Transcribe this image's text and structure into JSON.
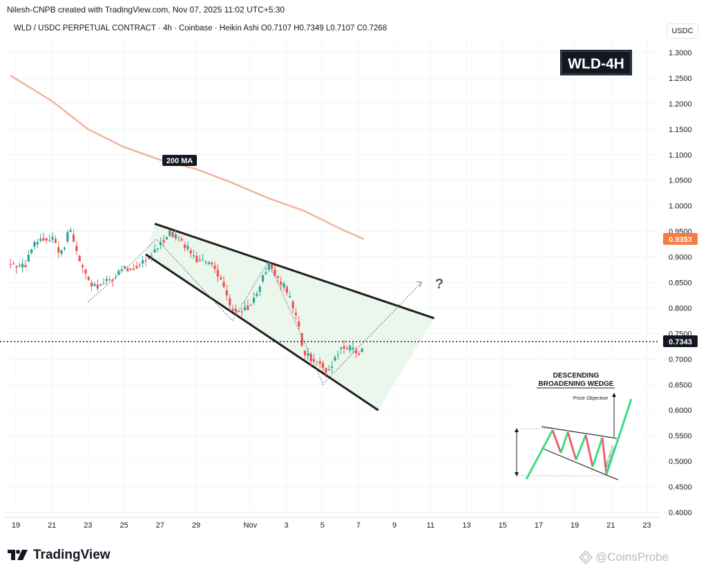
{
  "header": {
    "credit": "Nilesh-CNPB created with TradingView.com, Nov 07, 2025 11:02 UTC+5:30",
    "legend": "WLD / USDC PERPETUAL CONTRACT · 4h · Coinbase · Heikin Ashi  O0.7107  H0.7349  L0.7107  C0.7268",
    "unit_button": "USDC"
  },
  "badge": {
    "label": "WLD-4H"
  },
  "annotations": {
    "ma_label": "200 MA",
    "question_mark": "?",
    "current_price": "0.7343",
    "ma_price": "0.9353"
  },
  "inset": {
    "title_line1": "DESCENDING",
    "title_line2": "BROADENING WEDGE",
    "price_objective": "Price Objective",
    "breakout": "BREAKOUT"
  },
  "footer": {
    "logo_text": "TradingView",
    "watermark": "CoinsProbe",
    "logo_icon": "tradingview-logo-icon",
    "watermark_icon": "coinsprobe-icon"
  },
  "colors": {
    "up": "#26a69a",
    "down": "#ef5350",
    "ma": "#f2b49a",
    "wedge_fill": "#e8f5e9",
    "wedge_line": "#1e1e1e",
    "price_tag": "#131722",
    "ma_tag": "#f57c3e",
    "badge_bg": "#131722"
  },
  "chart_data": {
    "type": "candlestick",
    "style": "Heikin Ashi",
    "symbol": "WLD / USDC PERPETUAL CONTRACT",
    "interval": "4h",
    "exchange": "Coinbase",
    "ohlc_last": {
      "open": 0.7107,
      "high": 0.7349,
      "low": 0.7107,
      "close": 0.7268
    },
    "ylim": [
      0.4,
      1.3
    ],
    "y_ticks": [
      1.3,
      1.25,
      1.2,
      1.15,
      1.1,
      1.05,
      1.0,
      0.95,
      0.9,
      0.85,
      0.8,
      0.75,
      0.7,
      0.65,
      0.6,
      0.55,
      0.5,
      0.45,
      0.4
    ],
    "y_tick_labels": [
      "1.3000",
      "1.2500",
      "1.2000",
      "1.1500",
      "1.1000",
      "1.0500",
      "1.0000",
      "0.9500",
      "0.9000",
      "0.8500",
      "0.8000",
      "0.7500",
      "0.7000",
      "0.6500",
      "0.6000",
      "0.5500",
      "0.5000",
      "0.4500",
      "0.4000"
    ],
    "x_ticks": [
      {
        "day": 0,
        "label": "19"
      },
      {
        "day": 2,
        "label": "21"
      },
      {
        "day": 4,
        "label": "23"
      },
      {
        "day": 6,
        "label": "25"
      },
      {
        "day": 8,
        "label": "27"
      },
      {
        "day": 10,
        "label": "29"
      },
      {
        "day": 13,
        "label": "Nov"
      },
      {
        "day": 15,
        "label": "3"
      },
      {
        "day": 17,
        "label": "5"
      },
      {
        "day": 19,
        "label": "7"
      },
      {
        "day": 21,
        "label": "9"
      },
      {
        "day": 23,
        "label": "11"
      },
      {
        "day": 25,
        "label": "13"
      },
      {
        "day": 27,
        "label": "15"
      },
      {
        "day": 29,
        "label": "17"
      },
      {
        "day": 31,
        "label": "19"
      },
      {
        "day": 33,
        "label": "21"
      },
      {
        "day": 35,
        "label": "23"
      }
    ],
    "current_price": 0.7343,
    "ma200_last": 0.9353,
    "ma200": [
      {
        "day": -0.3,
        "y": 1.255
      },
      {
        "day": 2,
        "y": 1.205
      },
      {
        "day": 4,
        "y": 1.15
      },
      {
        "day": 6,
        "y": 1.115
      },
      {
        "day": 8,
        "y": 1.09
      },
      {
        "day": 10,
        "y": 1.072
      },
      {
        "day": 12,
        "y": 1.045
      },
      {
        "day": 14,
        "y": 1.015
      },
      {
        "day": 16,
        "y": 0.99
      },
      {
        "day": 18,
        "y": 0.955
      },
      {
        "day": 19.3,
        "y": 0.935
      }
    ],
    "candle_path": [
      [
        -0.3,
        0.885
      ],
      [
        0.5,
        0.88
      ],
      [
        1.0,
        0.925
      ],
      [
        2.0,
        0.94
      ],
      [
        2.5,
        0.905
      ],
      [
        3.0,
        0.955
      ],
      [
        3.5,
        0.895
      ],
      [
        4.2,
        0.84
      ],
      [
        5.0,
        0.85
      ],
      [
        6.0,
        0.875
      ],
      [
        6.5,
        0.88
      ],
      [
        7.5,
        0.9
      ],
      [
        8.0,
        0.925
      ],
      [
        8.5,
        0.95
      ],
      [
        9.0,
        0.935
      ],
      [
        9.5,
        0.92
      ],
      [
        10.0,
        0.895
      ],
      [
        11.0,
        0.885
      ],
      [
        12.0,
        0.8
      ],
      [
        12.5,
        0.79
      ],
      [
        13.0,
        0.805
      ],
      [
        13.5,
        0.84
      ],
      [
        14.0,
        0.885
      ],
      [
        14.5,
        0.86
      ],
      [
        15.0,
        0.835
      ],
      [
        15.5,
        0.79
      ],
      [
        16.0,
        0.71
      ],
      [
        17.0,
        0.69
      ],
      [
        17.3,
        0.67
      ],
      [
        18.0,
        0.725
      ],
      [
        18.5,
        0.72
      ],
      [
        19.0,
        0.71
      ],
      [
        19.3,
        0.727
      ]
    ],
    "wedge": {
      "upper": [
        {
          "day": 7.7,
          "y": 0.965
        },
        {
          "day": 23.2,
          "y": 0.78
        }
      ],
      "lower": [
        {
          "day": 7.2,
          "y": 0.905
        },
        {
          "day": 20.1,
          "y": 0.6
        }
      ],
      "fill": [
        {
          "day": 7.7,
          "y": 0.965
        },
        {
          "day": 23.2,
          "y": 0.78
        },
        {
          "day": 20.1,
          "y": 0.6
        },
        {
          "day": 7.2,
          "y": 0.905
        }
      ]
    },
    "projection": [
      {
        "day": 17.0,
        "y": 0.65
      },
      {
        "day": 22.5,
        "y": 0.85
      }
    ],
    "zigzag": [
      {
        "day": 4.0,
        "y": 0.812
      },
      {
        "day": 6.2,
        "y": 0.88
      },
      {
        "day": 7.8,
        "y": 0.935
      },
      {
        "day": 12.0,
        "y": 0.775
      },
      {
        "day": 14.0,
        "y": 0.89
      },
      {
        "day": 17.0,
        "y": 0.655
      }
    ]
  }
}
